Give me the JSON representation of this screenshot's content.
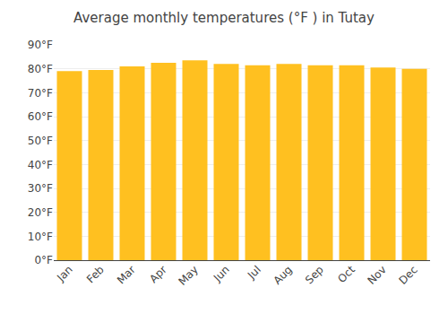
{
  "chart_data": {
    "type": "bar",
    "title": "Average monthly temperatures (°F ) in Tutay",
    "categories": [
      "Jan",
      "Feb",
      "Mar",
      "Apr",
      "May",
      "Jun",
      "Jul",
      "Aug",
      "Sep",
      "Oct",
      "Nov",
      "Dec"
    ],
    "values": [
      79,
      79.5,
      81,
      82.5,
      83.5,
      82,
      81.5,
      82,
      81.5,
      81.5,
      80.5,
      80
    ],
    "color": "#FFC020",
    "ylim": [
      0,
      90
    ],
    "yticks": [
      {
        "value": 0,
        "label": "0°F"
      },
      {
        "value": 10,
        "label": "10°F"
      },
      {
        "value": 20,
        "label": "20°F"
      },
      {
        "value": 30,
        "label": "30°F"
      },
      {
        "value": 40,
        "label": "40°F"
      },
      {
        "value": 50,
        "label": "50°F"
      },
      {
        "value": 60,
        "label": "60°F"
      },
      {
        "value": 70,
        "label": "70°F"
      },
      {
        "value": 80,
        "label": "80°F"
      },
      {
        "value": 90,
        "label": "90°F"
      }
    ],
    "grid": true
  }
}
